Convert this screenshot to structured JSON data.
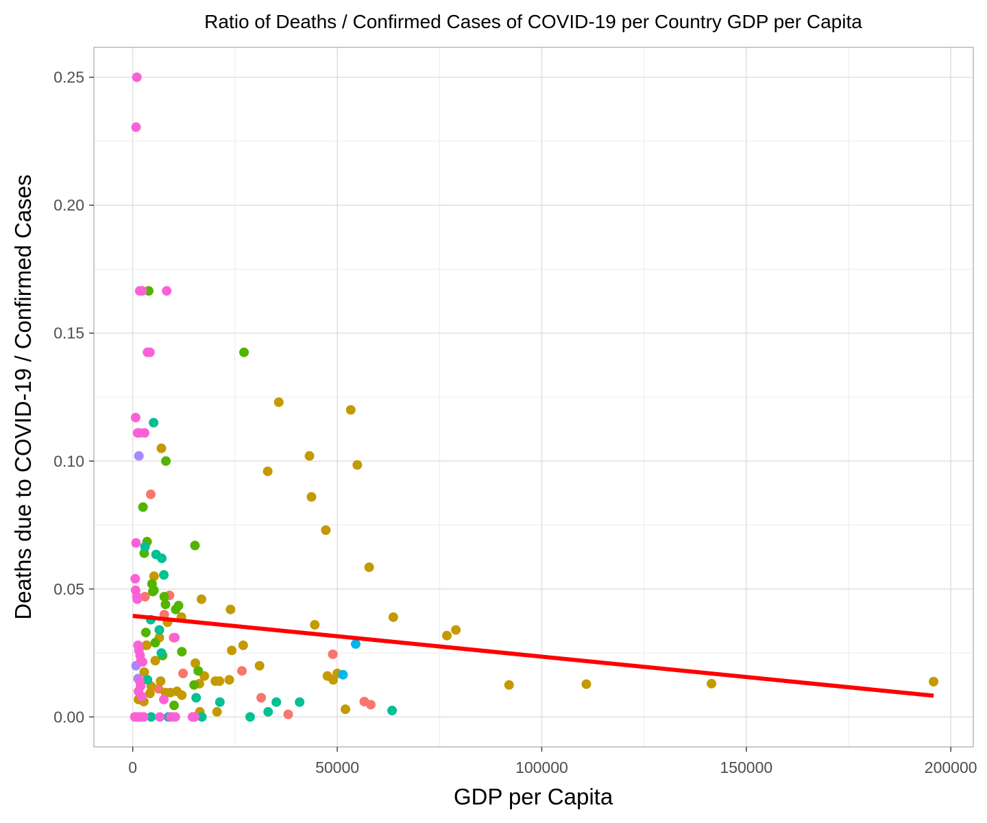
{
  "chart_data": {
    "type": "scatter",
    "title": "Ratio of Deaths / Confirmed Cases of COVID-19 per Country GDP per Capita",
    "xlabel": "GDP per Capita",
    "ylabel": "Deaths due to COVID-19 / Confirmed Cases",
    "xlim": [
      -9500,
      205500
    ],
    "ylim": [
      -0.0117,
      0.2617
    ],
    "x_ticks": [
      0,
      50000,
      100000,
      150000,
      200000
    ],
    "x_tick_labels": [
      "0",
      "50000",
      "100000",
      "150000",
      "200000"
    ],
    "y_ticks": [
      0,
      0.05,
      0.1,
      0.15,
      0.2,
      0.25
    ],
    "y_tick_labels": [
      "0.00",
      "0.05",
      "0.10",
      "0.15",
      "0.20",
      "0.25"
    ],
    "grid": true,
    "legend": "none",
    "trend_line": {
      "color": "#ff0000",
      "x": [
        0,
        195800
      ],
      "y": [
        0.0395,
        0.0083
      ]
    },
    "series": [
      {
        "color": "#f8766d",
        "x": [
          4400,
          7700,
          10000,
          12300,
          26700,
          31400,
          38000,
          48900,
          56600,
          58200,
          3000,
          6300,
          9000,
          3300
        ],
        "y": [
          0.087,
          0.04,
          0.031,
          0.017,
          0.018,
          0.0075,
          0.001,
          0.0245,
          0.006,
          0.0048,
          0.047,
          0.011,
          0.0475,
          0.028
        ]
      },
      {
        "color": "#c49a00",
        "x": [
          35700,
          53300,
          43200,
          33000,
          54900,
          43700,
          47200,
          57800,
          63700,
          76800,
          79000,
          44500,
          23900,
          27000,
          16800,
          24200,
          31000,
          20200,
          21200,
          23600,
          17500,
          15300,
          16300,
          50000,
          49000,
          47600,
          52000,
          92000,
          110900,
          141500,
          195800,
          7000,
          5200,
          6500,
          5500,
          8500,
          9200,
          11900,
          10800,
          12000,
          4500,
          2800,
          4200,
          3400,
          1400,
          2700,
          6800,
          8000,
          16400,
          20600
        ],
        "y": [
          0.123,
          0.12,
          0.102,
          0.096,
          0.0985,
          0.086,
          0.073,
          0.0585,
          0.039,
          0.0318,
          0.034,
          0.036,
          0.042,
          0.028,
          0.046,
          0.026,
          0.02,
          0.014,
          0.014,
          0.0145,
          0.016,
          0.021,
          0.013,
          0.017,
          0.0145,
          0.016,
          0.003,
          0.0125,
          0.0128,
          0.013,
          0.0138,
          0.105,
          0.055,
          0.031,
          0.022,
          0.037,
          0.0095,
          0.039,
          0.01,
          0.0085,
          0.012,
          0.0175,
          0.0092,
          0.028,
          0.0068,
          0.006,
          0.014,
          0.0095,
          0.002,
          0.002
        ]
      },
      {
        "color": "#53b400",
        "x": [
          27200,
          8100,
          2500,
          15200,
          3500,
          2800,
          4700,
          5200,
          7700,
          8000,
          11200,
          10500,
          3200,
          5500,
          12000,
          7300,
          10100,
          15000,
          16000,
          3900,
          4900
        ],
        "y": [
          0.1425,
          0.1,
          0.082,
          0.067,
          0.0685,
          0.064,
          0.052,
          0.0495,
          0.047,
          0.044,
          0.0435,
          0.042,
          0.033,
          0.029,
          0.0255,
          0.024,
          0.0045,
          0.0125,
          0.018,
          0.1665,
          0.049
        ]
      },
      {
        "color": "#00c094",
        "x": [
          5100,
          5700,
          7100,
          7600,
          3000,
          4400,
          6500,
          3600,
          15500,
          21300,
          28700,
          33100,
          35100,
          40800,
          63400,
          16900,
          7000,
          8700,
          9400,
          4500,
          15000
        ],
        "y": [
          0.115,
          0.0635,
          0.062,
          0.0555,
          0.0665,
          0.038,
          0.034,
          0.0145,
          0.0075,
          0.0058,
          0.0,
          0.002,
          0.0058,
          0.0058,
          0.0025,
          0.0,
          0.025,
          0.0,
          0.0,
          0.0,
          0.0
        ]
      },
      {
        "color": "#00b6eb",
        "x": [
          54500,
          51400
        ],
        "y": [
          0.0285,
          0.0165
        ]
      },
      {
        "color": "#a58aff",
        "x": [
          1500,
          800,
          1300,
          1000
        ],
        "y": [
          0.102,
          0.02,
          0.015,
          0.0
        ]
      },
      {
        "color": "#fb61d7",
        "x": [
          1000,
          800,
          1700,
          2300,
          8300,
          3600,
          4200,
          700,
          1200,
          1700,
          2900,
          800,
          600,
          700,
          1100,
          1000,
          1300,
          1500,
          1800,
          2000,
          2400,
          1700,
          1900,
          1400,
          2200,
          7600,
          10300,
          14600,
          800,
          1500,
          1800,
          2700,
          6600,
          9300,
          10400,
          15100,
          500
        ],
        "y": [
          0.25,
          0.2305,
          0.1665,
          0.1665,
          0.1665,
          0.1425,
          0.1425,
          0.117,
          0.111,
          0.111,
          0.111,
          0.068,
          0.054,
          0.0495,
          0.046,
          0.047,
          0.028,
          0.026,
          0.024,
          0.022,
          0.0215,
          0.014,
          0.012,
          0.01,
          0.008,
          0.0068,
          0.031,
          0.0,
          0.0,
          0.0,
          0.0,
          0.0,
          0.0,
          0.0,
          0.0,
          0.0,
          0.0
        ]
      }
    ]
  }
}
